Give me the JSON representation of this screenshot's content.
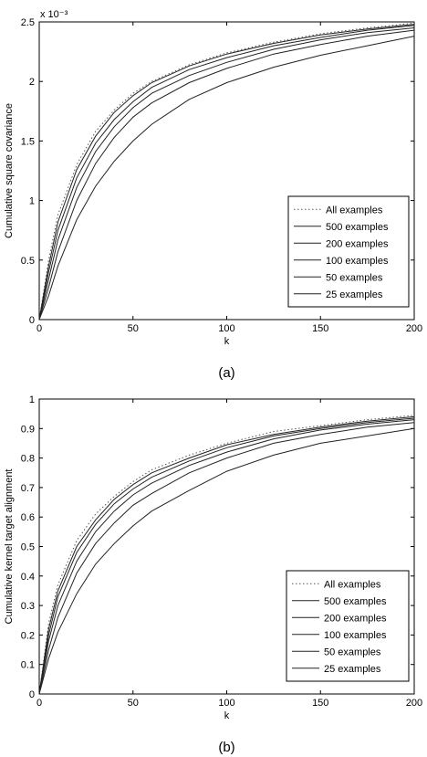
{
  "chart_data": [
    {
      "type": "line",
      "caption": "(a)",
      "xlabel": "k",
      "ylabel": "Cumulative square covariance",
      "exponent": "x 10⁻³",
      "xlim": [
        0,
        200
      ],
      "ylim": [
        0,
        2.5
      ],
      "xticks": [
        "0",
        "50",
        "100",
        "150",
        "200"
      ],
      "yticks": [
        "0",
        "0.5",
        "1",
        "1.5",
        "2",
        "2.5"
      ],
      "x": [
        0,
        5,
        10,
        20,
        30,
        40,
        50,
        60,
        80,
        100,
        125,
        150,
        175,
        200
      ],
      "legend_position": "lower-right",
      "series": [
        {
          "name": "All examples",
          "style": "dotted",
          "values": [
            0.0,
            0.5,
            0.88,
            1.3,
            1.58,
            1.76,
            1.9,
            2.0,
            2.14,
            2.24,
            2.33,
            2.4,
            2.45,
            2.49
          ]
        },
        {
          "name": "500 examples",
          "style": "solid",
          "values": [
            0.0,
            0.45,
            0.82,
            1.26,
            1.54,
            1.74,
            1.88,
            1.99,
            2.13,
            2.23,
            2.32,
            2.39,
            2.44,
            2.48
          ]
        },
        {
          "name": "200 examples",
          "style": "solid",
          "values": [
            0.0,
            0.4,
            0.75,
            1.19,
            1.48,
            1.68,
            1.83,
            1.95,
            2.1,
            2.2,
            2.3,
            2.37,
            2.43,
            2.47
          ]
        },
        {
          "name": "100 examples",
          "style": "solid",
          "values": [
            0.0,
            0.34,
            0.67,
            1.11,
            1.41,
            1.62,
            1.78,
            1.9,
            2.05,
            2.16,
            2.27,
            2.35,
            2.41,
            2.45
          ]
        },
        {
          "name": "50 examples",
          "style": "solid",
          "values": [
            0.0,
            0.27,
            0.57,
            1.0,
            1.31,
            1.53,
            1.7,
            1.82,
            1.99,
            2.11,
            2.23,
            2.31,
            2.38,
            2.43
          ]
        },
        {
          "name": "25 examples",
          "style": "solid",
          "values": [
            0.0,
            0.2,
            0.45,
            0.84,
            1.12,
            1.33,
            1.5,
            1.64,
            1.85,
            1.99,
            2.12,
            2.22,
            2.3,
            2.38
          ]
        }
      ]
    },
    {
      "type": "line",
      "caption": "(b)",
      "xlabel": "k",
      "ylabel": "Cumulative kernel target alignment",
      "xlim": [
        0,
        200
      ],
      "ylim": [
        0,
        1
      ],
      "xticks": [
        "0",
        "50",
        "100",
        "150",
        "200"
      ],
      "yticks": [
        "0",
        "0.1",
        "0.2",
        "0.3",
        "0.4",
        "0.5",
        "0.6",
        "0.7",
        "0.8",
        "0.9",
        "1"
      ],
      "x": [
        0,
        5,
        10,
        20,
        30,
        40,
        50,
        60,
        80,
        100,
        125,
        150,
        175,
        200
      ],
      "legend_position": "lower-right",
      "series": [
        {
          "name": "All examples",
          "style": "dotted",
          "values": [
            0.0,
            0.24,
            0.37,
            0.52,
            0.61,
            0.67,
            0.72,
            0.76,
            0.81,
            0.85,
            0.89,
            0.91,
            0.93,
            0.945
          ]
        },
        {
          "name": "500 examples",
          "style": "solid",
          "values": [
            0.0,
            0.22,
            0.35,
            0.5,
            0.59,
            0.66,
            0.71,
            0.75,
            0.8,
            0.845,
            0.88,
            0.905,
            0.925,
            0.94
          ]
        },
        {
          "name": "200 examples",
          "style": "solid",
          "values": [
            0.0,
            0.2,
            0.33,
            0.48,
            0.575,
            0.645,
            0.695,
            0.735,
            0.79,
            0.835,
            0.875,
            0.9,
            0.92,
            0.935
          ]
        },
        {
          "name": "100 examples",
          "style": "solid",
          "values": [
            0.0,
            0.18,
            0.3,
            0.45,
            0.55,
            0.62,
            0.675,
            0.715,
            0.775,
            0.82,
            0.865,
            0.895,
            0.915,
            0.93
          ]
        },
        {
          "name": "50 examples",
          "style": "solid",
          "values": [
            0.0,
            0.15,
            0.26,
            0.41,
            0.51,
            0.58,
            0.64,
            0.68,
            0.75,
            0.8,
            0.85,
            0.88,
            0.905,
            0.92
          ]
        },
        {
          "name": "25 examples",
          "style": "solid",
          "values": [
            0.0,
            0.12,
            0.21,
            0.34,
            0.44,
            0.51,
            0.57,
            0.62,
            0.69,
            0.755,
            0.81,
            0.85,
            0.875,
            0.9
          ]
        }
      ]
    }
  ]
}
